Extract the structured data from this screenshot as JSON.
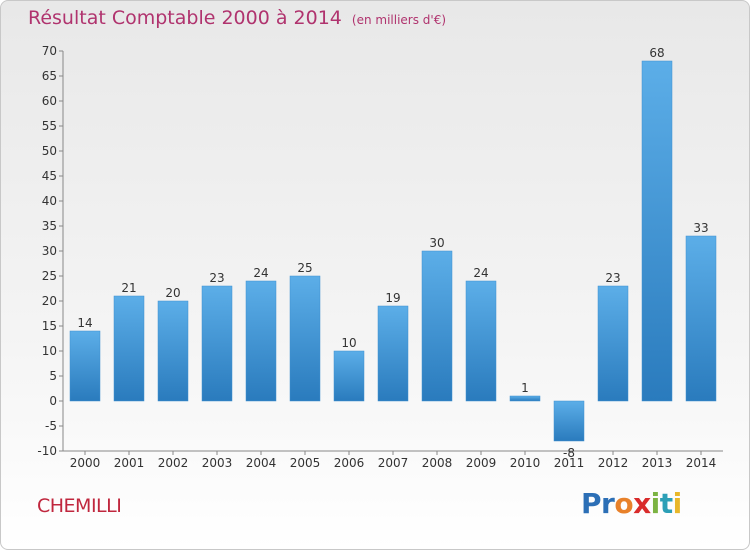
{
  "title": {
    "main": "Résultat Comptable 2000 à 2014",
    "unit": "(en milliers d'€)"
  },
  "commune": "CHEMILLI",
  "logo": {
    "text": "Proxiti",
    "letters": [
      {
        "ch": "P",
        "color": "#2c6fb6"
      },
      {
        "ch": "r",
        "color": "#2c6fb6"
      },
      {
        "ch": "o",
        "color": "#e8812a"
      },
      {
        "ch": "x",
        "color": "#d92b2b"
      },
      {
        "ch": "i",
        "color": "#7cb342"
      },
      {
        "ch": "t",
        "color": "#2c9fb6"
      },
      {
        "ch": "i",
        "color": "#e8b72a"
      }
    ]
  },
  "chart_data": {
    "type": "bar",
    "categories": [
      "2000",
      "2001",
      "2002",
      "2003",
      "2004",
      "2005",
      "2006",
      "2007",
      "2008",
      "2009",
      "2010",
      "2011",
      "2012",
      "2013",
      "2014"
    ],
    "values": [
      14,
      21,
      20,
      23,
      24,
      25,
      10,
      19,
      30,
      24,
      1,
      -8,
      23,
      68,
      33
    ],
    "data_labels": [
      "14",
      "21",
      "20",
      "23",
      "24",
      "25",
      "10",
      "19",
      "30",
      "24",
      "1",
      "-8",
      "23",
      "68",
      "33"
    ],
    "ylim": [
      -10,
      70
    ],
    "yticks": [
      -10,
      -5,
      0,
      5,
      10,
      15,
      20,
      25,
      30,
      35,
      40,
      45,
      50,
      55,
      60,
      65,
      70
    ],
    "xlabel": "",
    "ylabel": "",
    "grid": false,
    "legend": "none",
    "colors": {
      "bar_top": "#5caee8",
      "bar_bottom": "#2a7bbd",
      "axis": "#888888"
    }
  }
}
